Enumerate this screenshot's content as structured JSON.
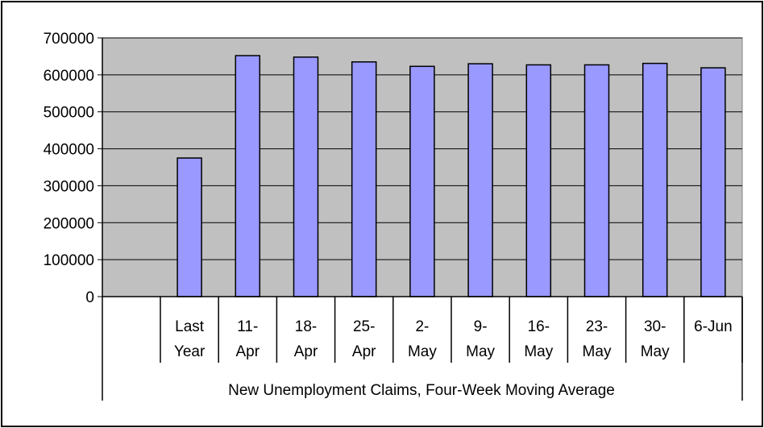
{
  "chart_data": {
    "type": "bar",
    "categories": [
      [
        "Last",
        "Year"
      ],
      [
        "11-",
        "Apr"
      ],
      [
        "18-",
        "Apr"
      ],
      [
        "25-",
        "Apr"
      ],
      [
        "2-",
        "May"
      ],
      [
        "9-",
        "May"
      ],
      [
        "16-",
        "May"
      ],
      [
        "23-",
        "May"
      ],
      [
        "30-",
        "May"
      ],
      [
        "6-Jun"
      ]
    ],
    "values": [
      375000,
      652000,
      648000,
      635000,
      623000,
      630000,
      627000,
      627000,
      631000,
      619000
    ],
    "title": "",
    "xlabel": "New Unemployment Claims, Four-Week Moving Average",
    "ylabel": "",
    "ylim": [
      0,
      700000
    ],
    "yticks": [
      0,
      100000,
      200000,
      300000,
      400000,
      500000,
      600000,
      700000
    ],
    "grid": true,
    "legend": "none",
    "colors": {
      "bar_fill": "#9999ff",
      "bar_stroke": "#000000",
      "plot_background": "#c0c0c0",
      "gridline": "#000000"
    }
  }
}
